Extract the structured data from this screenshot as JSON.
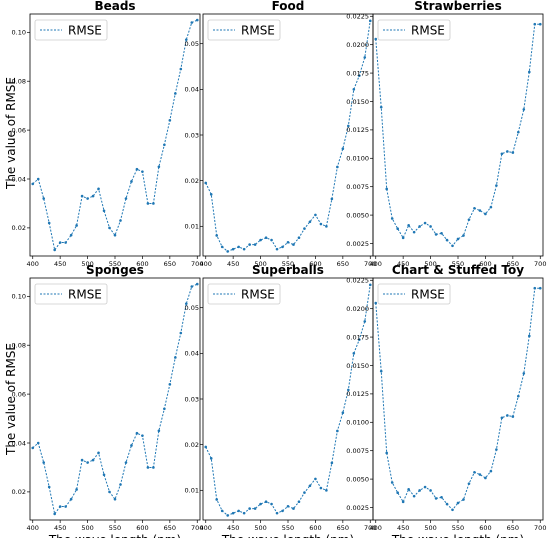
{
  "figure": {
    "ylabel_rows": [
      "The value of RMSE",
      "The value of RMSE"
    ],
    "xlabel": "The wave length (nm)"
  },
  "colors": {
    "series": "#1f77b4",
    "frame": "#000000"
  },
  "chart_data": [
    {
      "type": "line",
      "title": "Beads",
      "legend_position": "upper-left",
      "grid": false,
      "xlim": [
        395,
        705
      ],
      "ylim": [
        0.0085,
        0.1075
      ],
      "xticks": [
        400,
        450,
        500,
        550,
        600,
        650,
        700
      ],
      "yticks": [
        0.02,
        0.04,
        0.06,
        0.08,
        0.1
      ],
      "ytick_labels": [
        "0.02",
        "0.04",
        "0.06",
        "0.08",
        "0.10"
      ],
      "x": [
        400,
        410,
        420,
        430,
        440,
        450,
        460,
        470,
        480,
        490,
        500,
        510,
        520,
        530,
        540,
        550,
        560,
        570,
        580,
        590,
        600,
        610,
        620,
        630,
        640,
        650,
        660,
        670,
        680,
        690,
        700
      ],
      "series": [
        {
          "name": "RMSE",
          "values": [
            0.038,
            0.04,
            0.032,
            0.022,
            0.011,
            0.014,
            0.014,
            0.017,
            0.021,
            0.033,
            0.032,
            0.033,
            0.036,
            0.027,
            0.02,
            0.017,
            0.023,
            0.032,
            0.039,
            0.044,
            0.043,
            0.03,
            0.03,
            0.045,
            0.054,
            0.064,
            0.075,
            0.085,
            0.097,
            0.104,
            0.105
          ]
        }
      ]
    },
    {
      "type": "line",
      "title": "Food",
      "legend_position": "upper-left",
      "grid": false,
      "xlim": [
        395,
        705
      ],
      "ylim": [
        0.0035,
        0.0565
      ],
      "xticks": [
        400,
        450,
        500,
        550,
        600,
        650,
        700
      ],
      "yticks": [
        0.01,
        0.02,
        0.03,
        0.04,
        0.05
      ],
      "ytick_labels": [
        "0.01",
        "0.02",
        "0.03",
        "0.04",
        "0.05"
      ],
      "x": [
        400,
        410,
        420,
        430,
        440,
        450,
        460,
        470,
        480,
        490,
        500,
        510,
        520,
        530,
        540,
        550,
        560,
        570,
        580,
        590,
        600,
        610,
        620,
        630,
        640,
        650,
        660,
        670,
        680,
        690,
        700
      ],
      "series": [
        {
          "name": "RMSE",
          "values": [
            0.0195,
            0.017,
            0.008,
            0.0055,
            0.0045,
            0.005,
            0.0055,
            0.005,
            0.006,
            0.006,
            0.007,
            0.0075,
            0.007,
            0.005,
            0.0055,
            0.0065,
            0.006,
            0.0075,
            0.0095,
            0.011,
            0.0125,
            0.0105,
            0.01,
            0.016,
            0.023,
            0.027,
            0.032,
            0.04,
            0.043,
            0.047,
            0.055
          ]
        }
      ]
    },
    {
      "type": "line",
      "title": "Strawberries",
      "legend_position": "upper-left",
      "grid": false,
      "xlim": [
        395,
        705
      ],
      "ylim": [
        0.0014,
        0.0227
      ],
      "xticks": [
        400,
        450,
        500,
        550,
        600,
        650,
        700
      ],
      "yticks": [
        0.0025,
        0.005,
        0.0075,
        0.01,
        0.0125,
        0.015,
        0.0175,
        0.02,
        0.0225
      ],
      "ytick_labels": [
        "0.0025",
        "0.0050",
        "0.0075",
        "0.0100",
        "0.0125",
        "0.0150",
        "0.0175",
        "0.0200",
        "0.0225"
      ],
      "x": [
        400,
        410,
        420,
        430,
        440,
        450,
        460,
        470,
        480,
        490,
        500,
        510,
        520,
        530,
        540,
        550,
        560,
        570,
        580,
        590,
        600,
        610,
        620,
        630,
        640,
        650,
        660,
        670,
        680,
        690,
        700
      ],
      "series": [
        {
          "name": "RMSE",
          "values": [
            0.0205,
            0.0145,
            0.0073,
            0.0047,
            0.0038,
            0.003,
            0.0041,
            0.0035,
            0.004,
            0.0043,
            0.004,
            0.0033,
            0.0034,
            0.0028,
            0.0023,
            0.0029,
            0.0032,
            0.0046,
            0.0056,
            0.0054,
            0.0051,
            0.0057,
            0.0076,
            0.0104,
            0.0106,
            0.0105,
            0.0123,
            0.0143,
            0.0176,
            0.0218,
            0.0218
          ]
        }
      ]
    },
    {
      "type": "line",
      "title": "Sponges",
      "legend_position": "upper-left",
      "grid": false,
      "xlim": [
        395,
        705
      ],
      "ylim": [
        0.0085,
        0.1075
      ],
      "xticks": [
        400,
        450,
        500,
        550,
        600,
        650,
        700
      ],
      "yticks": [
        0.02,
        0.04,
        0.06,
        0.08,
        0.1
      ],
      "ytick_labels": [
        "0.02",
        "0.04",
        "0.06",
        "0.08",
        "0.10"
      ],
      "x": [
        400,
        410,
        420,
        430,
        440,
        450,
        460,
        470,
        480,
        490,
        500,
        510,
        520,
        530,
        540,
        550,
        560,
        570,
        580,
        590,
        600,
        610,
        620,
        630,
        640,
        650,
        660,
        670,
        680,
        690,
        700
      ],
      "series": [
        {
          "name": "RMSE",
          "values": [
            0.038,
            0.04,
            0.032,
            0.022,
            0.011,
            0.014,
            0.014,
            0.017,
            0.021,
            0.033,
            0.032,
            0.033,
            0.036,
            0.027,
            0.02,
            0.017,
            0.023,
            0.032,
            0.039,
            0.044,
            0.043,
            0.03,
            0.03,
            0.045,
            0.054,
            0.064,
            0.075,
            0.085,
            0.097,
            0.104,
            0.105
          ]
        }
      ]
    },
    {
      "type": "line",
      "title": "Superballs",
      "legend_position": "upper-left",
      "grid": false,
      "xlim": [
        395,
        705
      ],
      "ylim": [
        0.0035,
        0.0565
      ],
      "xticks": [
        400,
        450,
        500,
        550,
        600,
        650,
        700
      ],
      "yticks": [
        0.01,
        0.02,
        0.03,
        0.04,
        0.05
      ],
      "ytick_labels": [
        "0.01",
        "0.02",
        "0.03",
        "0.04",
        "0.05"
      ],
      "x": [
        400,
        410,
        420,
        430,
        440,
        450,
        460,
        470,
        480,
        490,
        500,
        510,
        520,
        530,
        540,
        550,
        560,
        570,
        580,
        590,
        600,
        610,
        620,
        630,
        640,
        650,
        660,
        670,
        680,
        690,
        700
      ],
      "series": [
        {
          "name": "RMSE",
          "values": [
            0.0195,
            0.017,
            0.008,
            0.0055,
            0.0045,
            0.005,
            0.0055,
            0.005,
            0.006,
            0.006,
            0.007,
            0.0075,
            0.007,
            0.005,
            0.0055,
            0.0065,
            0.006,
            0.0075,
            0.0095,
            0.011,
            0.0125,
            0.0105,
            0.01,
            0.016,
            0.023,
            0.027,
            0.032,
            0.04,
            0.043,
            0.047,
            0.055
          ]
        }
      ]
    },
    {
      "type": "line",
      "title": "Chart & Stuffed Toy",
      "legend_position": "upper-left",
      "grid": false,
      "xlim": [
        395,
        705
      ],
      "ylim": [
        0.0014,
        0.0227
      ],
      "xticks": [
        400,
        450,
        500,
        550,
        600,
        650,
        700
      ],
      "yticks": [
        0.0025,
        0.005,
        0.0075,
        0.01,
        0.0125,
        0.015,
        0.0175,
        0.02,
        0.0225
      ],
      "ytick_labels": [
        "0.0025",
        "0.0050",
        "0.0075",
        "0.0100",
        "0.0125",
        "0.0150",
        "0.0175",
        "0.0200",
        "0.0225"
      ],
      "x": [
        400,
        410,
        420,
        430,
        440,
        450,
        460,
        470,
        480,
        490,
        500,
        510,
        520,
        530,
        540,
        550,
        560,
        570,
        580,
        590,
        600,
        610,
        620,
        630,
        640,
        650,
        660,
        670,
        680,
        690,
        700
      ],
      "series": [
        {
          "name": "RMSE",
          "values": [
            0.0205,
            0.0145,
            0.0073,
            0.0047,
            0.0038,
            0.003,
            0.0041,
            0.0035,
            0.004,
            0.0043,
            0.004,
            0.0033,
            0.0034,
            0.0028,
            0.0023,
            0.0029,
            0.0032,
            0.0046,
            0.0056,
            0.0054,
            0.0051,
            0.0057,
            0.0076,
            0.0104,
            0.0106,
            0.0105,
            0.0123,
            0.0143,
            0.0176,
            0.0218,
            0.0218
          ]
        }
      ]
    }
  ]
}
